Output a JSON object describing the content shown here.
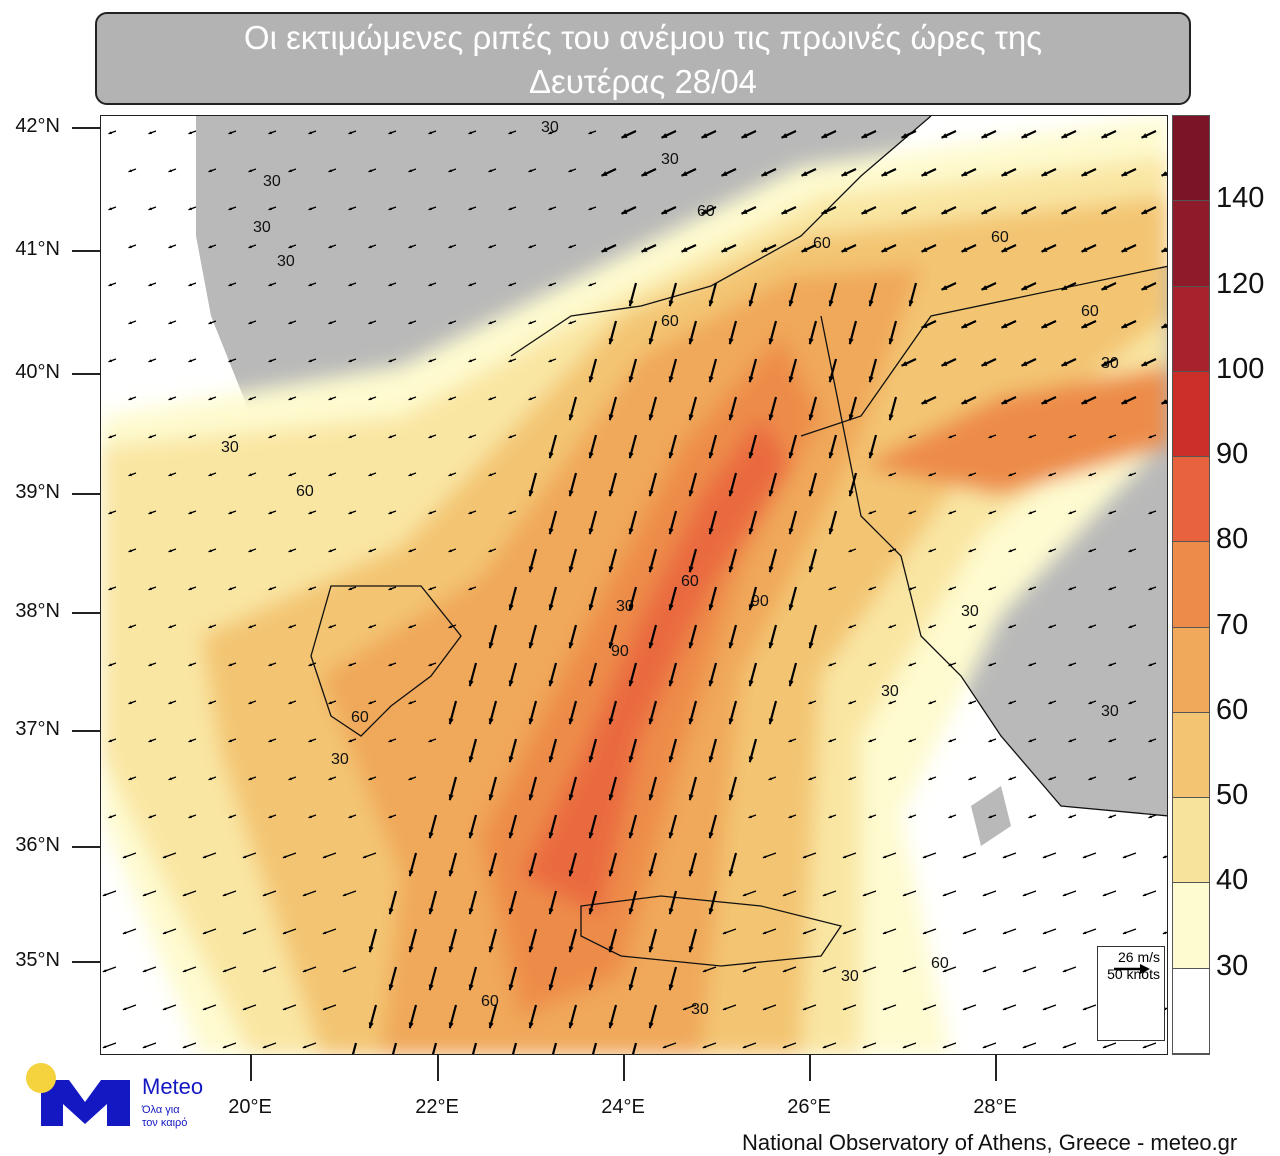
{
  "title": {
    "line1": "Οι εκτιμώμενες ριπές του ανέμου τις πρωινές ώρες της",
    "line2": "Δευτέρας 28/04"
  },
  "axes": {
    "lat_ticks": [
      "42°N",
      "41°N",
      "40°N",
      "39°N",
      "38°N",
      "37°N",
      "36°N",
      "35°N"
    ],
    "lon_ticks": [
      "20°E",
      "22°E",
      "24°E",
      "26°E",
      "28°E"
    ]
  },
  "colorbar": {
    "labels": [
      "140",
      "120",
      "100",
      "90",
      "80",
      "70",
      "60",
      "50",
      "40",
      "30"
    ],
    "colors": [
      "#7a1426",
      "#8e1a2a",
      "#a8222d",
      "#cc2f2a",
      "#e8623e",
      "#ed8c48",
      "#f0a85a",
      "#f3c572",
      "#f8e39d",
      "#fefbd0",
      "#ffffff"
    ]
  },
  "reference_vector": {
    "speed_ms": "26 m/s",
    "speed_knots": "50 knots"
  },
  "contour_labels": [
    "30",
    "30",
    "30",
    "30",
    "30",
    "60",
    "60",
    "60",
    "60",
    "60",
    "30",
    "30",
    "60",
    "90",
    "90",
    "60",
    "30",
    "60",
    "30",
    "30",
    "60",
    "30",
    "60",
    "30",
    "30",
    "30"
  ],
  "colors": {
    "land": "#b9b9b9",
    "sea": "#ffffff",
    "arrow": "#000000"
  },
  "logo": {
    "name": "Meteo",
    "tagline1": "Όλα για",
    "tagline2": "τον καιρό",
    "yellow": "#f5d33f",
    "blue": "#1418c2"
  },
  "credit": "National Observatory of Athens, Greece - meteo.gr"
}
